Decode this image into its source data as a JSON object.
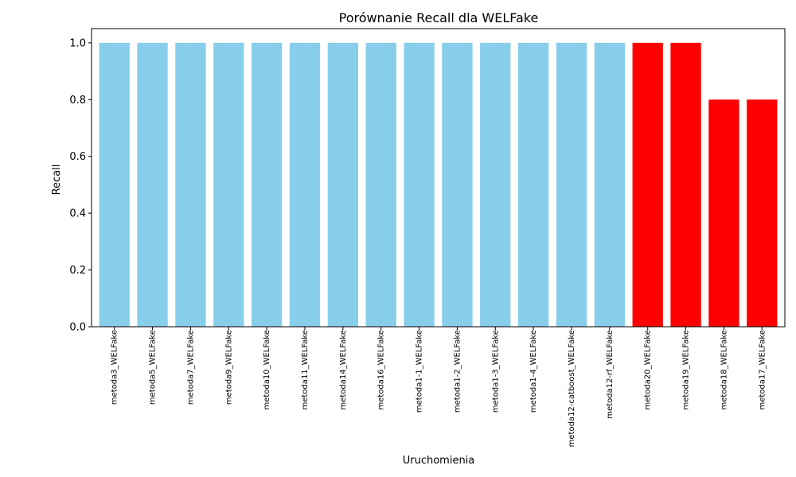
{
  "chart_data": {
    "type": "bar",
    "title": "Porównanie Recall dla WELFake",
    "xlabel": "Uruchomienia",
    "ylabel": "Recall",
    "ylim": [
      0,
      1.05
    ],
    "yticks": [
      "0.0",
      "0.2",
      "0.4",
      "0.6",
      "0.8",
      "1.0"
    ],
    "grid": false,
    "categories": [
      "metoda3_WELFake",
      "metoda5_WELFake",
      "metoda7_WELFake",
      "metoda9_WELFake",
      "metoda10_WELFake",
      "metoda11_WELFake",
      "metoda14_WELFake",
      "metoda16_WELFake",
      "metoda1-1_WELFake",
      "metoda1-2_WELFake",
      "metoda1-3_WELFake",
      "metoda1-4_WELFake",
      "metoda12-catboost_WELFake",
      "metoda12-rf_WELFake",
      "metoda20_WELFake",
      "metoda19_WELFake",
      "metoda18_WELFake",
      "metoda17_WELFake"
    ],
    "values": [
      1.0,
      1.0,
      1.0,
      1.0,
      1.0,
      1.0,
      1.0,
      1.0,
      1.0,
      1.0,
      1.0,
      1.0,
      1.0,
      1.0,
      1.0,
      1.0,
      0.8,
      0.8
    ],
    "bar_colors": [
      "#87ceeb",
      "#87ceeb",
      "#87ceeb",
      "#87ceeb",
      "#87ceeb",
      "#87ceeb",
      "#87ceeb",
      "#87ceeb",
      "#87ceeb",
      "#87ceeb",
      "#87ceeb",
      "#87ceeb",
      "#87ceeb",
      "#87ceeb",
      "#ff0000",
      "#ff0000",
      "#ff0000",
      "#ff0000"
    ]
  }
}
